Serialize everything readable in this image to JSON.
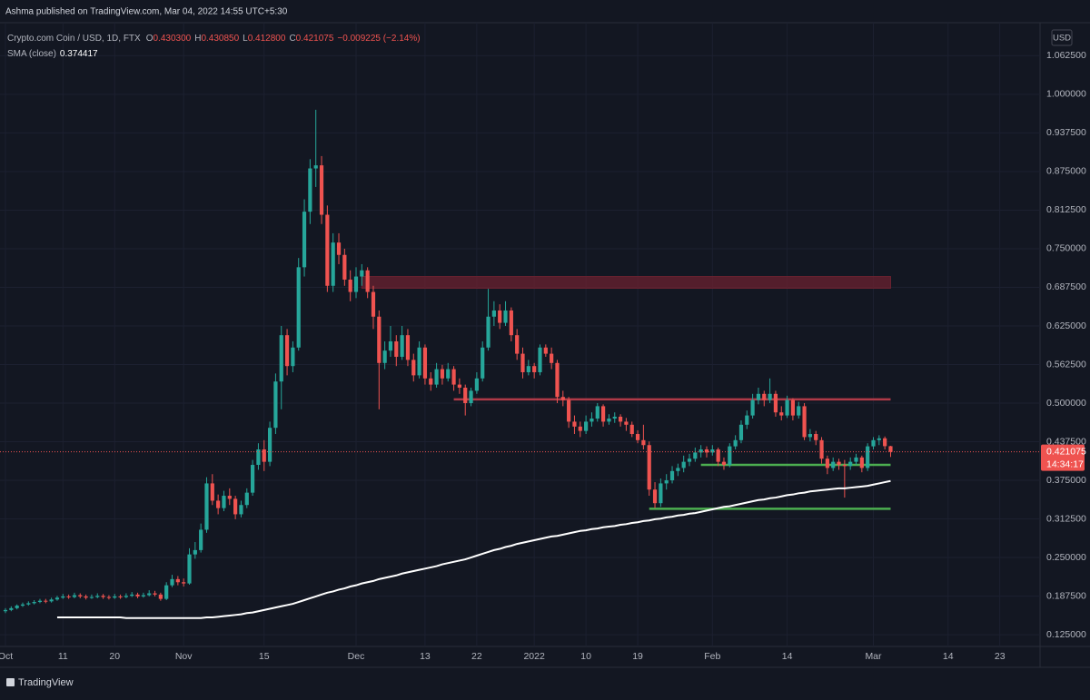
{
  "header": {
    "publisher": "Ashma published on TradingView.com, Mar 04, 2022 14:55 UTC+5:30"
  },
  "footer": {
    "logo": "TradingView"
  },
  "chart_data": {
    "type": "candlestick",
    "symbol": "Crypto.com Coin / USD, 1D, FTX",
    "ohlc_legend": [
      {
        "letter": "O",
        "value": 0.4303,
        "label": "0.430300"
      },
      {
        "letter": "H",
        "value": 0.43085,
        "label": "0.430850"
      },
      {
        "letter": "L",
        "value": 0.4128,
        "label": "0.412800"
      },
      {
        "letter": "C",
        "value": 0.421075,
        "label": "0.421075"
      }
    ],
    "change": "−0.009225 (−2.14%)",
    "currency": "USD",
    "up_color": "#26a69a",
    "down_color": "#ef5350",
    "ohlc": [
      [
        0.163,
        0.168,
        0.16,
        0.165
      ],
      [
        0.165,
        0.171,
        0.163,
        0.168
      ],
      [
        0.168,
        0.174,
        0.166,
        0.172
      ],
      [
        0.172,
        0.177,
        0.17,
        0.174
      ],
      [
        0.174,
        0.179,
        0.172,
        0.176
      ],
      [
        0.176,
        0.181,
        0.174,
        0.178
      ],
      [
        0.178,
        0.183,
        0.176,
        0.18
      ],
      [
        0.18,
        0.183,
        0.176,
        0.179
      ],
      [
        0.179,
        0.185,
        0.177,
        0.182
      ],
      [
        0.182,
        0.188,
        0.18,
        0.185
      ],
      [
        0.185,
        0.191,
        0.183,
        0.187
      ],
      [
        0.187,
        0.19,
        0.183,
        0.186
      ],
      [
        0.186,
        0.193,
        0.184,
        0.189
      ],
      [
        0.189,
        0.192,
        0.184,
        0.187
      ],
      [
        0.187,
        0.19,
        0.182,
        0.185
      ],
      [
        0.185,
        0.19,
        0.183,
        0.186
      ],
      [
        0.186,
        0.192,
        0.184,
        0.188
      ],
      [
        0.188,
        0.191,
        0.183,
        0.186
      ],
      [
        0.186,
        0.189,
        0.182,
        0.185
      ],
      [
        0.185,
        0.191,
        0.183,
        0.187
      ],
      [
        0.187,
        0.19,
        0.183,
        0.186
      ],
      [
        0.186,
        0.192,
        0.184,
        0.188
      ],
      [
        0.188,
        0.194,
        0.186,
        0.19
      ],
      [
        0.19,
        0.193,
        0.184,
        0.187
      ],
      [
        0.187,
        0.193,
        0.185,
        0.189
      ],
      [
        0.189,
        0.197,
        0.187,
        0.192
      ],
      [
        0.192,
        0.196,
        0.187,
        0.19
      ],
      [
        0.19,
        0.193,
        0.18,
        0.183
      ],
      [
        0.183,
        0.21,
        0.181,
        0.205
      ],
      [
        0.205,
        0.222,
        0.202,
        0.215
      ],
      [
        0.215,
        0.22,
        0.205,
        0.21
      ],
      [
        0.21,
        0.216,
        0.203,
        0.208
      ],
      [
        0.208,
        0.265,
        0.206,
        0.255
      ],
      [
        0.255,
        0.275,
        0.248,
        0.262
      ],
      [
        0.262,
        0.305,
        0.258,
        0.295
      ],
      [
        0.295,
        0.38,
        0.29,
        0.37
      ],
      [
        0.37,
        0.385,
        0.335,
        0.342
      ],
      [
        0.342,
        0.352,
        0.32,
        0.33
      ],
      [
        0.33,
        0.358,
        0.325,
        0.35
      ],
      [
        0.35,
        0.362,
        0.335,
        0.345
      ],
      [
        0.345,
        0.35,
        0.312,
        0.32
      ],
      [
        0.32,
        0.342,
        0.315,
        0.335
      ],
      [
        0.335,
        0.362,
        0.33,
        0.355
      ],
      [
        0.355,
        0.408,
        0.35,
        0.4
      ],
      [
        0.4,
        0.435,
        0.392,
        0.425
      ],
      [
        0.425,
        0.44,
        0.39,
        0.405
      ],
      [
        0.405,
        0.47,
        0.398,
        0.46
      ],
      [
        0.46,
        0.548,
        0.45,
        0.535
      ],
      [
        0.535,
        0.625,
        0.49,
        0.61
      ],
      [
        0.61,
        0.62,
        0.545,
        0.56
      ],
      [
        0.56,
        0.6,
        0.55,
        0.59
      ],
      [
        0.59,
        0.735,
        0.585,
        0.72
      ],
      [
        0.72,
        0.83,
        0.705,
        0.81
      ],
      [
        0.81,
        0.895,
        0.79,
        0.88
      ],
      [
        0.88,
        0.975,
        0.85,
        0.885
      ],
      [
        0.885,
        0.9,
        0.79,
        0.805
      ],
      [
        0.805,
        0.82,
        0.68,
        0.69
      ],
      [
        0.69,
        0.775,
        0.68,
        0.76
      ],
      [
        0.76,
        0.775,
        0.725,
        0.74
      ],
      [
        0.74,
        0.75,
        0.69,
        0.7
      ],
      [
        0.7,
        0.715,
        0.665,
        0.68
      ],
      [
        0.68,
        0.72,
        0.67,
        0.705
      ],
      [
        0.705,
        0.725,
        0.69,
        0.715
      ],
      [
        0.715,
        0.72,
        0.67,
        0.68
      ],
      [
        0.68,
        0.69,
        0.62,
        0.64
      ],
      [
        0.64,
        0.65,
        0.49,
        0.565
      ],
      [
        0.565,
        0.6,
        0.555,
        0.585
      ],
      [
        0.585,
        0.625,
        0.575,
        0.6
      ],
      [
        0.6,
        0.61,
        0.56,
        0.575
      ],
      [
        0.575,
        0.625,
        0.57,
        0.61
      ],
      [
        0.61,
        0.62,
        0.56,
        0.57
      ],
      [
        0.57,
        0.58,
        0.535,
        0.545
      ],
      [
        0.545,
        0.6,
        0.54,
        0.59
      ],
      [
        0.59,
        0.595,
        0.53,
        0.54
      ],
      [
        0.54,
        0.55,
        0.52,
        0.53
      ],
      [
        0.53,
        0.565,
        0.525,
        0.555
      ],
      [
        0.555,
        0.562,
        0.53,
        0.54
      ],
      [
        0.54,
        0.565,
        0.535,
        0.555
      ],
      [
        0.555,
        0.56,
        0.52,
        0.53
      ],
      [
        0.53,
        0.54,
        0.515,
        0.525
      ],
      [
        0.525,
        0.53,
        0.48,
        0.5
      ],
      [
        0.5,
        0.525,
        0.495,
        0.52
      ],
      [
        0.52,
        0.55,
        0.515,
        0.54
      ],
      [
        0.54,
        0.6,
        0.535,
        0.59
      ],
      [
        0.59,
        0.685,
        0.585,
        0.64
      ],
      [
        0.64,
        0.665,
        0.625,
        0.65
      ],
      [
        0.65,
        0.66,
        0.62,
        0.63
      ],
      [
        0.63,
        0.665,
        0.625,
        0.65
      ],
      [
        0.65,
        0.655,
        0.6,
        0.61
      ],
      [
        0.61,
        0.62,
        0.57,
        0.58
      ],
      [
        0.58,
        0.59,
        0.54,
        0.55
      ],
      [
        0.55,
        0.57,
        0.545,
        0.56
      ],
      [
        0.56,
        0.565,
        0.54,
        0.55
      ],
      [
        0.55,
        0.595,
        0.545,
        0.59
      ],
      [
        0.59,
        0.595,
        0.575,
        0.58
      ],
      [
        0.58,
        0.59,
        0.555,
        0.565
      ],
      [
        0.565,
        0.57,
        0.5,
        0.51
      ],
      [
        0.51,
        0.52,
        0.495,
        0.505
      ],
      [
        0.505,
        0.51,
        0.46,
        0.47
      ],
      [
        0.47,
        0.48,
        0.45,
        0.462
      ],
      [
        0.462,
        0.47,
        0.445,
        0.455
      ],
      [
        0.455,
        0.48,
        0.45,
        0.47
      ],
      [
        0.47,
        0.485,
        0.462,
        0.475
      ],
      [
        0.475,
        0.5,
        0.47,
        0.495
      ],
      [
        0.495,
        0.498,
        0.462,
        0.47
      ],
      [
        0.47,
        0.482,
        0.465,
        0.475
      ],
      [
        0.475,
        0.485,
        0.468,
        0.478
      ],
      [
        0.478,
        0.482,
        0.462,
        0.47
      ],
      [
        0.47,
        0.476,
        0.455,
        0.465
      ],
      [
        0.465,
        0.47,
        0.445,
        0.45
      ],
      [
        0.45,
        0.456,
        0.435,
        0.44
      ],
      [
        0.44,
        0.465,
        0.425,
        0.432
      ],
      [
        0.432,
        0.438,
        0.35,
        0.36
      ],
      [
        0.36,
        0.372,
        0.33,
        0.338
      ],
      [
        0.338,
        0.378,
        0.332,
        0.37
      ],
      [
        0.37,
        0.385,
        0.36,
        0.375
      ],
      [
        0.375,
        0.398,
        0.37,
        0.39
      ],
      [
        0.39,
        0.402,
        0.382,
        0.395
      ],
      [
        0.395,
        0.415,
        0.388,
        0.405
      ],
      [
        0.405,
        0.418,
        0.398,
        0.41
      ],
      [
        0.41,
        0.428,
        0.405,
        0.42
      ],
      [
        0.42,
        0.432,
        0.412,
        0.425
      ],
      [
        0.425,
        0.43,
        0.412,
        0.42
      ],
      [
        0.42,
        0.432,
        0.415,
        0.425
      ],
      [
        0.425,
        0.428,
        0.398,
        0.405
      ],
      [
        0.405,
        0.412,
        0.392,
        0.4
      ],
      [
        0.4,
        0.435,
        0.396,
        0.43
      ],
      [
        0.43,
        0.448,
        0.425,
        0.44
      ],
      [
        0.44,
        0.472,
        0.435,
        0.465
      ],
      [
        0.465,
        0.488,
        0.458,
        0.48
      ],
      [
        0.48,
        0.515,
        0.475,
        0.505
      ],
      [
        0.505,
        0.525,
        0.498,
        0.515
      ],
      [
        0.515,
        0.52,
        0.495,
        0.505
      ],
      [
        0.505,
        0.54,
        0.5,
        0.515
      ],
      [
        0.515,
        0.52,
        0.478,
        0.485
      ],
      [
        0.485,
        0.495,
        0.472,
        0.48
      ],
      [
        0.48,
        0.512,
        0.476,
        0.505
      ],
      [
        0.505,
        0.508,
        0.472,
        0.48
      ],
      [
        0.48,
        0.502,
        0.475,
        0.495
      ],
      [
        0.495,
        0.5,
        0.44,
        0.445
      ],
      [
        0.445,
        0.458,
        0.438,
        0.45
      ],
      [
        0.45,
        0.455,
        0.432,
        0.44
      ],
      [
        0.44,
        0.445,
        0.402,
        0.41
      ],
      [
        0.41,
        0.415,
        0.385,
        0.395
      ],
      [
        0.395,
        0.412,
        0.39,
        0.405
      ],
      [
        0.405,
        0.41,
        0.392,
        0.4
      ],
      [
        0.4,
        0.408,
        0.347,
        0.398
      ],
      [
        0.398,
        0.412,
        0.392,
        0.405
      ],
      [
        0.405,
        0.418,
        0.4,
        0.412
      ],
      [
        0.412,
        0.415,
        0.388,
        0.395
      ],
      [
        0.395,
        0.435,
        0.39,
        0.43
      ],
      [
        0.43,
        0.445,
        0.425,
        0.44
      ],
      [
        0.44,
        0.448,
        0.432,
        0.443
      ],
      [
        0.443,
        0.446,
        0.425,
        0.4303
      ],
      [
        0.4303,
        0.43085,
        0.4128,
        0.421075
      ]
    ],
    "series": [
      {
        "name": "SMA (close)",
        "color": "#ffffff",
        "legend_value": {
          "value": 0.374417,
          "label": "0.374417"
        },
        "values": [
          null,
          null,
          null,
          null,
          null,
          null,
          null,
          null,
          null,
          0.153,
          0.153,
          0.153,
          0.153,
          0.153,
          0.153,
          0.153,
          0.153,
          0.153,
          0.153,
          0.153,
          0.153,
          0.152,
          0.152,
          0.152,
          0.152,
          0.152,
          0.152,
          0.152,
          0.152,
          0.152,
          0.152,
          0.152,
          0.152,
          0.152,
          0.152,
          0.153,
          0.153,
          0.154,
          0.155,
          0.156,
          0.157,
          0.158,
          0.16,
          0.161,
          0.163,
          0.165,
          0.167,
          0.169,
          0.171,
          0.173,
          0.175,
          0.178,
          0.181,
          0.184,
          0.187,
          0.19,
          0.193,
          0.195,
          0.198,
          0.2,
          0.203,
          0.205,
          0.208,
          0.21,
          0.212,
          0.215,
          0.217,
          0.219,
          0.221,
          0.224,
          0.226,
          0.228,
          0.23,
          0.232,
          0.234,
          0.236,
          0.239,
          0.241,
          0.243,
          0.245,
          0.247,
          0.25,
          0.253,
          0.256,
          0.259,
          0.262,
          0.264,
          0.267,
          0.269,
          0.272,
          0.274,
          0.276,
          0.278,
          0.28,
          0.282,
          0.284,
          0.285,
          0.287,
          0.289,
          0.291,
          0.293,
          0.294,
          0.296,
          0.297,
          0.299,
          0.3,
          0.301,
          0.303,
          0.304,
          0.306,
          0.307,
          0.309,
          0.31,
          0.312,
          0.313,
          0.315,
          0.316,
          0.318,
          0.319,
          0.321,
          0.322,
          0.324,
          0.326,
          0.328,
          0.33,
          0.332,
          0.333,
          0.335,
          0.337,
          0.339,
          0.341,
          0.343,
          0.344,
          0.346,
          0.347,
          0.349,
          0.351,
          0.352,
          0.354,
          0.355,
          0.357,
          0.358,
          0.359,
          0.36,
          0.361,
          0.362,
          0.362,
          0.363,
          0.364,
          0.365,
          0.366,
          0.368,
          0.37,
          0.372,
          0.374
        ]
      }
    ],
    "zones": [
      {
        "low": 0.686,
        "high": 0.705,
        "from": 62,
        "to": 154,
        "color": "#6b2230"
      }
    ],
    "levels": [
      {
        "value": 0.506,
        "from": 78,
        "to": 154,
        "color": "#b03a48"
      },
      {
        "value": 0.4,
        "from": 121,
        "to": 154,
        "color": "#4caf50"
      },
      {
        "value": 0.329,
        "from": 112,
        "to": 154,
        "color": "#4caf50"
      }
    ],
    "price_label": {
      "value": 0.421075,
      "label": "0.421075"
    },
    "countdown": "14:34:17",
    "xlim": [
      -0.95,
      180
    ],
    "xticks": [
      {
        "value": 0,
        "label": "Oct"
      },
      {
        "value": 10,
        "label": "11"
      },
      {
        "value": 19,
        "label": "20"
      },
      {
        "value": 31,
        "label": "Nov"
      },
      {
        "value": 45,
        "label": "15"
      },
      {
        "value": 61,
        "label": "Dec"
      },
      {
        "value": 73,
        "label": "13"
      },
      {
        "value": 82,
        "label": "22"
      },
      {
        "value": 92,
        "label": "2022"
      },
      {
        "value": 101,
        "label": "10"
      },
      {
        "value": 110,
        "label": "19"
      },
      {
        "value": 123,
        "label": "Feb"
      },
      {
        "value": 136,
        "label": "14"
      },
      {
        "value": 151,
        "label": "Mar"
      },
      {
        "value": 164,
        "label": "14"
      },
      {
        "value": 173,
        "label": "23"
      }
    ],
    "ylim": [
      0.106,
      1.116
    ],
    "yticks": [
      {
        "value": 1.0625,
        "label": "1.062500"
      },
      {
        "value": 1,
        "label": "1.000000"
      },
      {
        "value": 0.9375,
        "label": "0.937500"
      },
      {
        "value": 0.875,
        "label": "0.875000"
      },
      {
        "value": 0.8125,
        "label": "0.812500"
      },
      {
        "value": 0.75,
        "label": "0.750000"
      },
      {
        "value": 0.6875,
        "label": "0.687500"
      },
      {
        "value": 0.625,
        "label": "0.625000"
      },
      {
        "value": 0.5625,
        "label": "0.562500"
      },
      {
        "value": 0.5,
        "label": "0.500000"
      },
      {
        "value": 0.4375,
        "label": "0.437500"
      },
      {
        "value": 0.375,
        "label": "0.375000"
      },
      {
        "value": 0.3125,
        "label": "0.312500"
      },
      {
        "value": 0.25,
        "label": "0.250000"
      },
      {
        "value": 0.1875,
        "label": "0.187500"
      },
      {
        "value": 0.125,
        "label": "0.125000"
      }
    ],
    "grid": true
  }
}
